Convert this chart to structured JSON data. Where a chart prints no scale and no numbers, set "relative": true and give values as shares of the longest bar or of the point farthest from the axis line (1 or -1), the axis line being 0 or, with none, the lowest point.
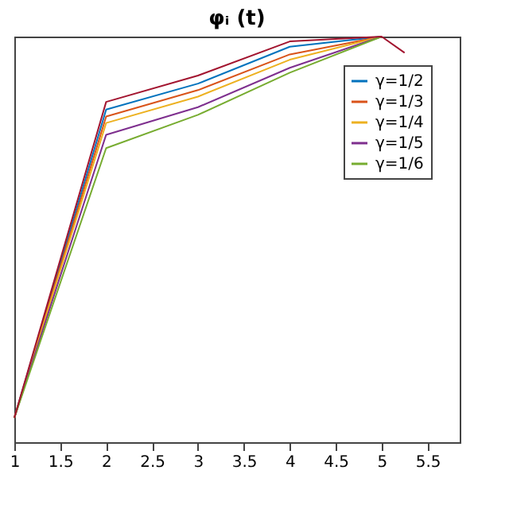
{
  "chart_data": {
    "type": "line",
    "title": "φᵢ (t)",
    "relative": true,
    "x": [
      1,
      2,
      3,
      4,
      5,
      5.25
    ],
    "xlim": [
      1,
      5.85
    ],
    "xticks": [
      1,
      1.5,
      2,
      2.5,
      3,
      3.5,
      4,
      4.5,
      5,
      5.5
    ],
    "legend": "top right",
    "grid": false,
    "line_style": "solid",
    "series": [
      {
        "name": "γ=1/2",
        "color": "#0072bd",
        "values": [
          0.06,
          0.82,
          0.884,
          0.975,
          1.0,
          null
        ]
      },
      {
        "name": "γ=1/3",
        "color": "#d95319",
        "values": [
          0.06,
          0.803,
          0.868,
          0.956,
          1.0,
          null
        ]
      },
      {
        "name": "γ=1/4",
        "color": "#edb120",
        "values": [
          0.06,
          0.787,
          0.852,
          0.943,
          1.0,
          null
        ]
      },
      {
        "name": "γ=1/5",
        "color": "#7e2f8e",
        "values": [
          0.06,
          0.758,
          0.826,
          0.923,
          1.0,
          null
        ]
      },
      {
        "name": "γ=1/6",
        "color": "#77ac30",
        "values": [
          0.06,
          0.725,
          0.807,
          0.911,
          1.0,
          null
        ]
      },
      {
        "color": "#a2142f",
        "values": [
          0.06,
          0.839,
          0.904,
          0.988,
          1.0,
          0.96
        ]
      }
    ]
  }
}
